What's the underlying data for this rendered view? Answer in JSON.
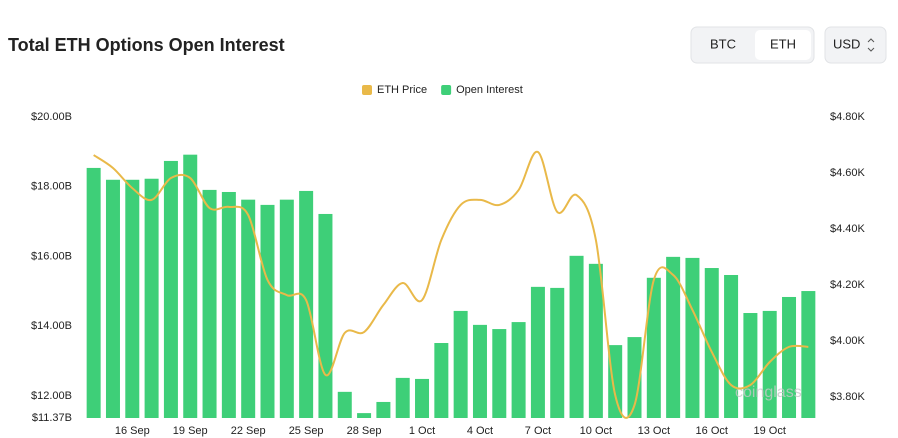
{
  "header": {
    "buttons": [
      "BTC",
      "ETH"
    ],
    "currency": "USD"
  },
  "chart_data": {
    "type": "bar",
    "title": "Total ETH Options Open Interest",
    "watermark": "coinglass",
    "categories": [
      null,
      null,
      "16 Sep",
      null,
      null,
      "19 Sep",
      null,
      null,
      "22 Sep",
      null,
      null,
      "25 Sep",
      null,
      null,
      "28 Sep",
      null,
      null,
      "1 Oct",
      null,
      null,
      "4 Oct",
      null,
      null,
      "7 Oct",
      null,
      null,
      "10 Oct",
      null,
      null,
      "13 Oct",
      null,
      null,
      "16 Oct",
      null,
      null,
      "19 Oct",
      null,
      null
    ],
    "series": [
      {
        "name": "ETH Price",
        "type": "line",
        "axis": "y2",
        "color": "#e9b949",
        "values": [
          4664,
          4618,
          4546,
          4504,
          4582,
          4582,
          4475,
          4479,
          4450,
          4218,
          4164,
          4146,
          3879,
          4029,
          4032,
          4129,
          4207,
          4146,
          4361,
          4486,
          4504,
          4486,
          4539,
          4675,
          4461,
          4521,
          4361,
          3807,
          3771,
          4218,
          4236,
          4111,
          3961,
          3843,
          3843,
          3925,
          3979,
          3979
        ]
      },
      {
        "name": "Open Interest",
        "type": "bar",
        "color": "#3ecf78",
        "values": [
          18.54,
          18.2,
          18.2,
          18.23,
          18.74,
          18.92,
          17.91,
          17.85,
          17.63,
          17.48,
          17.63,
          17.88,
          17.22,
          12.12,
          11.51,
          11.83,
          12.52,
          12.49,
          13.52,
          14.44,
          14.04,
          13.92,
          14.12,
          15.13,
          15.1,
          16.02,
          15.79,
          13.46,
          13.69,
          15.39,
          15.99,
          15.96,
          15.67,
          15.47,
          14.38,
          14.44,
          14.84,
          15.01
        ]
      }
    ],
    "ylim": [
      11.37,
      20
    ],
    "yticks": [
      {
        "value": 11.37,
        "label": "$11.37B"
      },
      {
        "value": 12,
        "label": "$12.00B"
      },
      {
        "value": 14,
        "label": "$14.00B"
      },
      {
        "value": 16,
        "label": "$16.00B"
      },
      {
        "value": 18,
        "label": "$18.00B"
      },
      {
        "value": 20,
        "label": "$20.00B"
      }
    ],
    "y2lim": [
      3725,
      4800
    ],
    "y2ticks": [
      {
        "value": 3800,
        "label": "$3.80K"
      },
      {
        "value": 4000,
        "label": "$4.00K"
      },
      {
        "value": 4200,
        "label": "$4.20K"
      },
      {
        "value": 4400,
        "label": "$4.40K"
      },
      {
        "value": 4600,
        "label": "$4.60K"
      },
      {
        "value": 4800,
        "label": "$4.80K"
      }
    ]
  }
}
